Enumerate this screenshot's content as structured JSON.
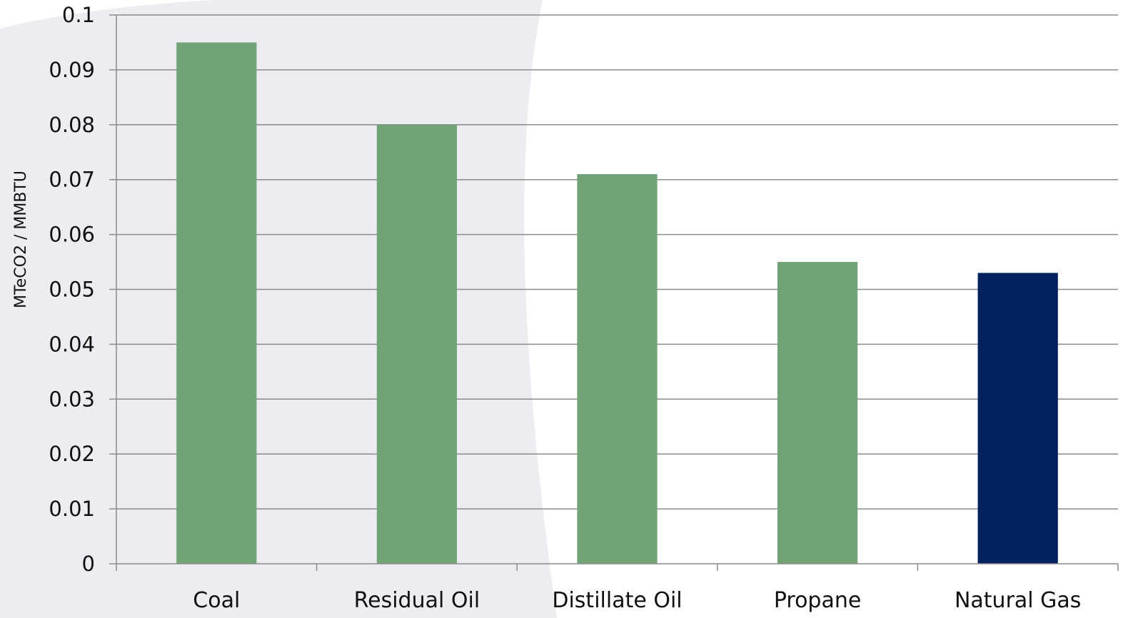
{
  "chart_data": {
    "type": "bar",
    "title": "",
    "xlabel": "",
    "ylabel": "MTeCO2 / MMBTU",
    "categories": [
      "Coal",
      "Residual Oil",
      "Distillate Oil",
      "Propane",
      "Natural Gas"
    ],
    "values": [
      0.095,
      0.08,
      0.071,
      0.055,
      0.053
    ],
    "bar_colors": [
      "#71a377",
      "#71a377",
      "#71a377",
      "#71a377",
      "#03215c"
    ],
    "ylim": [
      0,
      0.1
    ],
    "yticks": [
      "0",
      "0.01",
      "0.02",
      "0.03",
      "0.04",
      "0.05",
      "0.06",
      "0.07",
      "0.08",
      "0.09",
      "0.1"
    ],
    "grid": true,
    "legend": "none"
  },
  "colors": {
    "gridline": "#8c8c8c",
    "axis": "#8c8c8c",
    "background_shape": "#e6e6ec"
  }
}
